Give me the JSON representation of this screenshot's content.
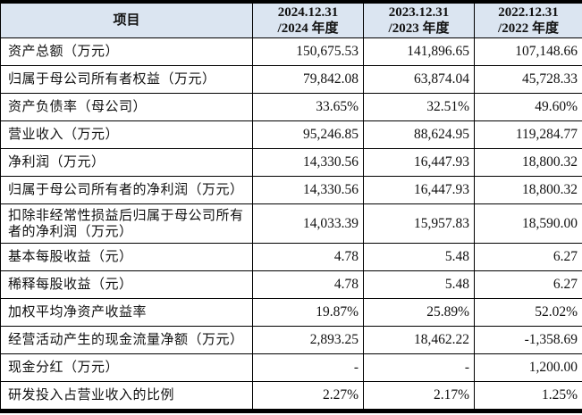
{
  "table": {
    "headers": [
      {
        "line1": "项目",
        "line2": ""
      },
      {
        "line1": "2024.12.31",
        "line2": "/2024 年度"
      },
      {
        "line1": "2023.12.31",
        "line2": "/2023 年度"
      },
      {
        "line1": "2022.12.31",
        "line2": "/2022 年度"
      }
    ],
    "rows": [
      {
        "label": "资产总额（万元）",
        "values": [
          "150,675.53",
          "141,896.65",
          "107,148.66"
        ]
      },
      {
        "label": "归属于母公司所有者权益（万元）",
        "values": [
          "79,842.08",
          "63,874.04",
          "45,728.33"
        ]
      },
      {
        "label": "资产负债率（母公司）",
        "values": [
          "33.65%",
          "32.51%",
          "49.60%"
        ]
      },
      {
        "label": "营业收入（万元）",
        "values": [
          "95,246.85",
          "88,624.95",
          "119,284.77"
        ]
      },
      {
        "label": "净利润（万元）",
        "values": [
          "14,330.56",
          "16,447.93",
          "18,800.32"
        ]
      },
      {
        "label": "归属于母公司所有者的净利润（万元）",
        "values": [
          "14,330.56",
          "16,447.93",
          "18,800.32"
        ]
      },
      {
        "label": "扣除非经常性损益后归属于母公司所有者的净利润（万元）",
        "values": [
          "14,033.39",
          "15,957.83",
          "18,590.00"
        ]
      },
      {
        "label": "基本每股收益（元）",
        "values": [
          "4.78",
          "5.48",
          "6.27"
        ]
      },
      {
        "label": "稀释每股收益（元）",
        "values": [
          "4.78",
          "5.48",
          "6.27"
        ]
      },
      {
        "label": "加权平均净资产收益率",
        "values": [
          "19.87%",
          "25.89%",
          "52.02%"
        ]
      },
      {
        "label": "经营活动产生的现金流量净额（万元）",
        "values": [
          "2,893.25",
          "18,462.22",
          "-1,358.69"
        ]
      },
      {
        "label": "现金分红（万元）",
        "values": [
          "-",
          "-",
          "1,200.00"
        ]
      },
      {
        "label": "研发投入占营业收入的比例",
        "values": [
          "2.27%",
          "2.17%",
          "1.25%"
        ]
      }
    ]
  },
  "colors": {
    "header_bg": "#dbe5f1",
    "border": "#000000",
    "text": "#111111"
  }
}
